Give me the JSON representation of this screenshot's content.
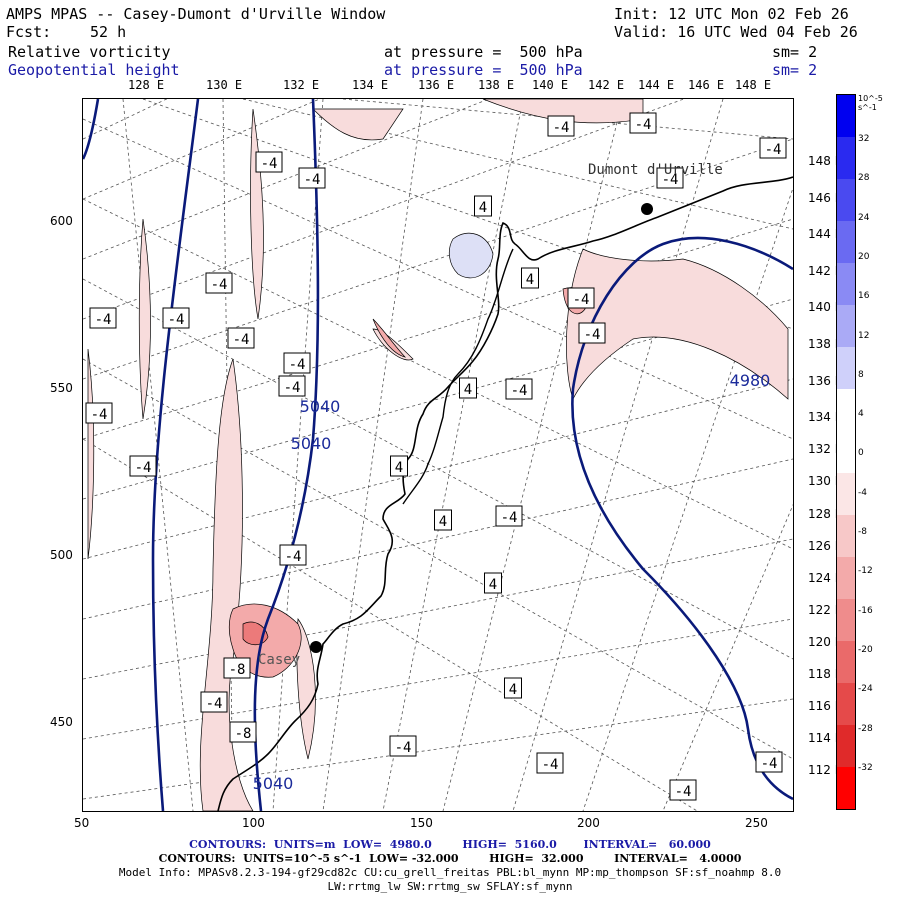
{
  "header": {
    "title": "AMPS MPAS -- Casey-Dumont d'Urville Window",
    "init": "Init: 12 UTC Mon 02 Feb 26",
    "fcst_label": "Fcst:",
    "fcst_value": "52 h",
    "valid": "Valid: 16 UTC Wed 04 Feb 26",
    "field1_name": "Relative vorticity",
    "field1_level": "at pressure =  500 hPa",
    "field1_sm": "sm= 2",
    "field2_name": "Geopotential height",
    "field2_level": "at pressure =  500 hPa",
    "field2_sm": "sm= 2"
  },
  "lon_labels": [
    "128 E",
    "130 E",
    "132 E",
    "134 E",
    "136 E",
    "138 E",
    "140 E",
    "142 E",
    "144 E",
    "146 E",
    "148 E"
  ],
  "x_ticks": [
    "50",
    "100",
    "150",
    "200",
    "250"
  ],
  "y_ticks": [
    "600",
    "550",
    "500",
    "450"
  ],
  "lat_labels": [
    "148 E",
    "146 E",
    "144 E",
    "142 E",
    "140 E",
    "138 E",
    "136 E",
    "134 E",
    "132 E",
    "130 E",
    "128 E",
    "126 E",
    "124 E",
    "122 E",
    "120 E",
    "118 E",
    "116 E",
    "114 E",
    "112 E"
  ],
  "colorbar": {
    "unit": "10^-5 s^-1",
    "ticks": [
      "32",
      "28",
      "24",
      "20",
      "16",
      "12",
      "8",
      "4",
      "0",
      "-4",
      "-8",
      "-12",
      "-16",
      "-20",
      "-24",
      "-28",
      "-32"
    ],
    "colors": [
      "#0000f0",
      "#2a2af0",
      "#4a4af0",
      "#6a6af2",
      "#8a8af4",
      "#aaaaf6",
      "#cfd0fa",
      "#ffffff",
      "#ffffff",
      "#fbe6e6",
      "#f7c8c8",
      "#f3aaaa",
      "#ef8c8c",
      "#ea6a6a",
      "#e54a4a",
      "#e02a2a",
      "#ff0000"
    ]
  },
  "map": {
    "stations": [
      "Dumont d'Urville",
      "Casey"
    ],
    "height_labels": [
      "5040",
      "5040",
      "4980",
      "5040"
    ],
    "vort_labels": [
      "-4",
      "-4",
      "-4",
      "4",
      "-4",
      "-4",
      "-4",
      "-4",
      "-4",
      "-4",
      "-4",
      "-4",
      "-4",
      "-4",
      "4",
      "4",
      "-4",
      "-4",
      "4",
      "4",
      "4",
      "-4",
      "4",
      "-4",
      "-8",
      "-4",
      "-8",
      "-4",
      "-4",
      "-4",
      "-4",
      "-4",
      "-4"
    ]
  },
  "footer": {
    "line1": "CONTOURS:  UNITS=m  LOW=  4980.0        HIGH=  5160.0       INTERVAL=   60.000",
    "line2": "CONTOURS:  UNITS=10^-5 s^-1  LOW= -32.000        HIGH=  32.000        INTERVAL=   4.0000",
    "line3": "Model Info: MPASv8.2.3-194-gf29cd82c CU:cu_grell_freitas PBL:bl_mynn MP:mp_thompson SF:sf_noahmp 8.0",
    "line4": "LW:rrtmg_lw SW:rrtmg_sw SFLAY:sf_mynn"
  }
}
